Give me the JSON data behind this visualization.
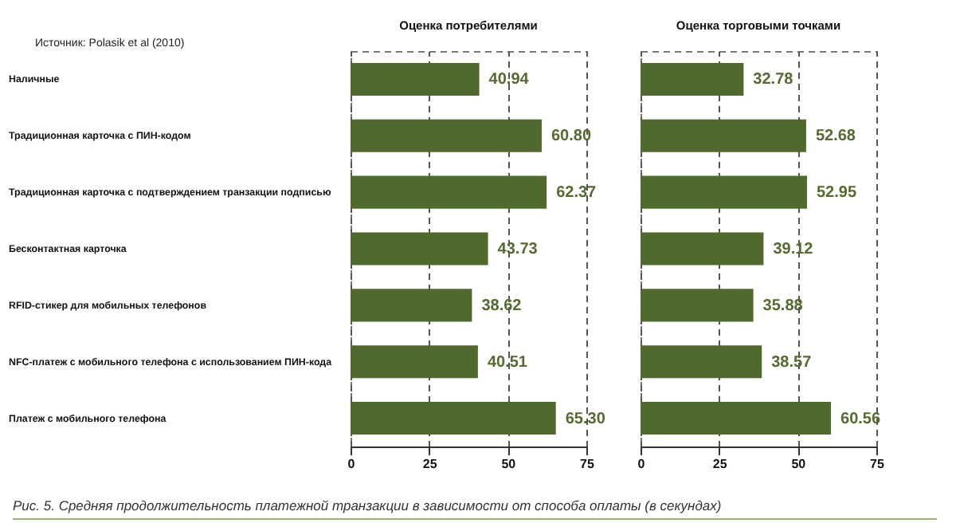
{
  "chart_data": [
    {
      "type": "bar",
      "orientation": "horizontal",
      "title": "Оценка потребителями",
      "categories": [
        "Наличные",
        "Традиционная карточка с ПИН-кодом",
        "Традиционная карточка с подтверждением транзакции подписью",
        "Бесконтактная карточка",
        "RFID-стикер для мобильных телефонов",
        "NFC-платеж с мобильного телефона с использованием ПИН-кода",
        "Платеж с мобильного телефона"
      ],
      "values": [
        40.94,
        60.8,
        62.37,
        43.73,
        38.62,
        40.51,
        65.3
      ],
      "value_labels": [
        "40.94",
        "60.80",
        "62.37",
        "43.73",
        "38.62",
        "40.51",
        "65.30"
      ],
      "color": "#4f6a2c",
      "xlim": [
        0,
        75
      ],
      "xticks": [
        0,
        25,
        50,
        75
      ],
      "grid": "x",
      "line_style": "dashed",
      "annotations": [
        "Источник: Polasik et al (2010)",
        "Рис. 5. Средняя продолжительность платежной транзакции в зависимости от способа оплаты (в секундах)"
      ]
    },
    {
      "type": "bar",
      "orientation": "horizontal",
      "title": "Оценка торговыми точками",
      "categories": [
        "Наличные",
        "Традиционная карточка с ПИН-кодом",
        "Традиционная карточка с подтверждением транзакции подписью",
        "Бесконтактная карточка",
        "RFID-стикер для мобильных телефонов",
        "NFC-платеж с мобильного телефона с использованием ПИН-кода",
        "Платеж с мобильного телефона"
      ],
      "values": [
        32.78,
        52.68,
        52.95,
        39.12,
        35.88,
        38.57,
        60.56
      ],
      "value_labels": [
        "32.78",
        "52.68",
        "52.95",
        "39.12",
        "35.88",
        "38.57",
        "60.56"
      ],
      "color": "#4f6a2c",
      "xlim": [
        0,
        75
      ],
      "xticks": [
        0,
        25,
        50,
        75
      ],
      "grid": "x",
      "line_style": "dashed",
      "tick_labels": "x"
    }
  ]
}
